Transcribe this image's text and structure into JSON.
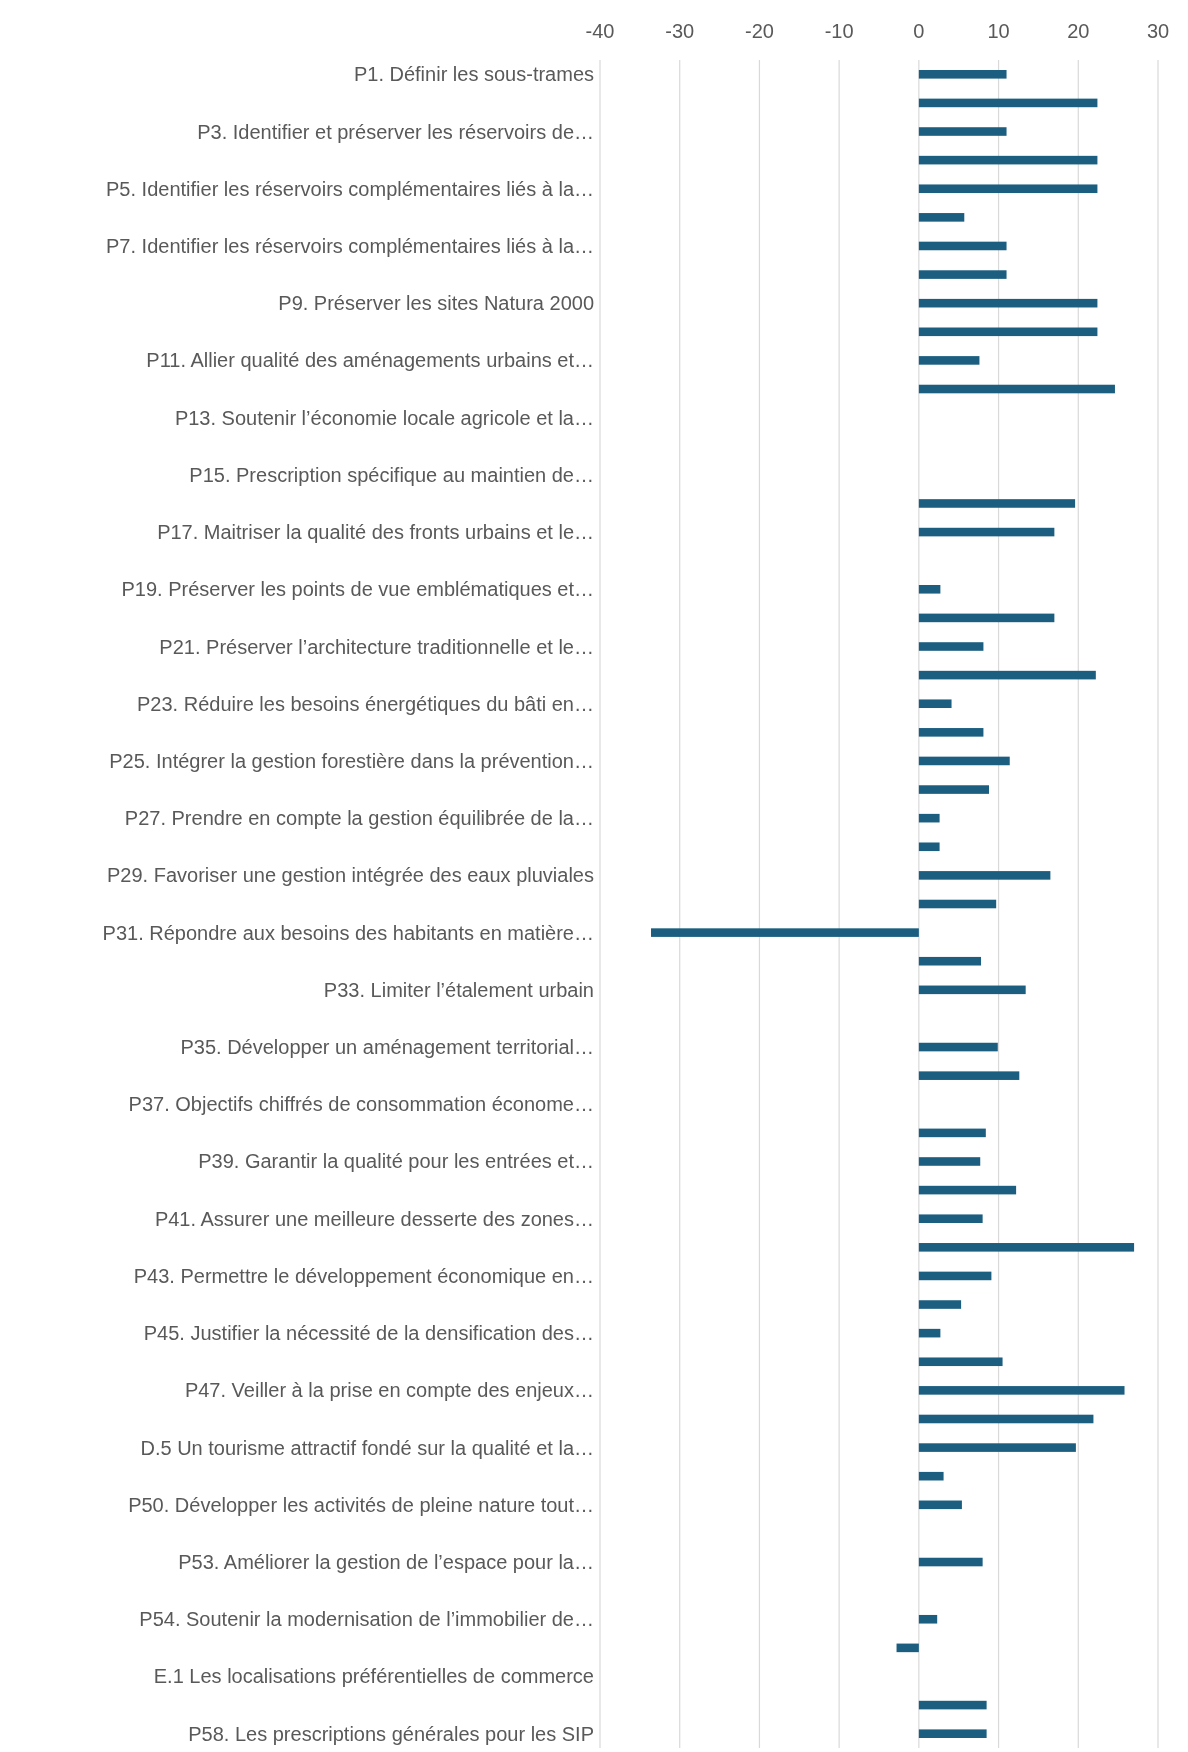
{
  "chart_data": {
    "type": "bar",
    "orientation": "horizontal",
    "color": "#1b5e80",
    "grid": "x",
    "xlim": [
      -40,
      30
    ],
    "xticks": [
      -40,
      -30,
      -20,
      -10,
      0,
      10,
      20,
      30
    ],
    "categories": [
      "P1. Définir les sous-trames",
      null,
      "P3. Identifier et préserver les réservoirs de…",
      null,
      "P5. Identifier les réservoirs complémentaires liés à la…",
      null,
      "P7. Identifier les réservoirs complémentaires liés à la…",
      null,
      "P9. Préserver les sites Natura 2000",
      null,
      "P11. Allier qualité des aménagements urbains et…",
      null,
      "P13. Soutenir l’économie locale agricole et la…",
      null,
      "P15. Prescription spécifique au maintien de…",
      null,
      "P17. Maitriser la qualité des fronts urbains et le…",
      null,
      "P19. Préserver les points de vue emblématiques et…",
      null,
      "P21. Préserver l’architecture traditionnelle et le…",
      null,
      "P23. Réduire les besoins énergétiques du bâti en…",
      null,
      "P25. Intégrer la gestion forestière dans la prévention…",
      null,
      "P27. Prendre en compte la gestion équilibrée de la…",
      null,
      "P29. Favoriser une gestion intégrée des eaux pluviales",
      null,
      "P31. Répondre aux besoins des habitants en matière…",
      null,
      "P33. Limiter l’étalement urbain",
      null,
      "P35. Développer un aménagement territorial…",
      null,
      "P37. Objectifs chiffrés de consommation économe…",
      null,
      "P39. Garantir la qualité pour les entrées et…",
      null,
      "P41. Assurer une meilleure desserte des zones…",
      null,
      "P43. Permettre le développement économique en…",
      null,
      "P45. Justifier la nécessité de la densification des…",
      null,
      "P47. Veiller à la prise en compte des enjeux…",
      null,
      "D.5 Un tourisme attractif fondé sur la qualité et la…",
      null,
      "P50. Développer les activités de pleine nature tout…",
      null,
      "P53. Améliorer la gestion de l’espace pour la…",
      null,
      "P54. Soutenir la modernisation de l’immobilier de…",
      null,
      "E.1 Les localisations préférentielles de commerce",
      null,
      "P58. Les prescriptions générales pour les SIP"
    ],
    "values": [
      11,
      22.4,
      11,
      22.4,
      22.4,
      5.7,
      11,
      11,
      22.4,
      22.4,
      7.6,
      24.6,
      null,
      null,
      null,
      19.6,
      17,
      null,
      2.7,
      17,
      8.1,
      22.2,
      4.1,
      8.1,
      11.4,
      8.8,
      2.6,
      2.6,
      16.5,
      9.7,
      -33.6,
      7.8,
      13.4,
      null,
      9.9,
      12.6,
      null,
      8.4,
      7.7,
      12.2,
      8,
      27,
      9.1,
      5.3,
      2.7,
      10.5,
      25.8,
      21.9,
      19.7,
      3.1,
      5.4,
      null,
      8,
      null,
      2.3,
      -2.8,
      null,
      8.5,
      8.5
    ]
  }
}
